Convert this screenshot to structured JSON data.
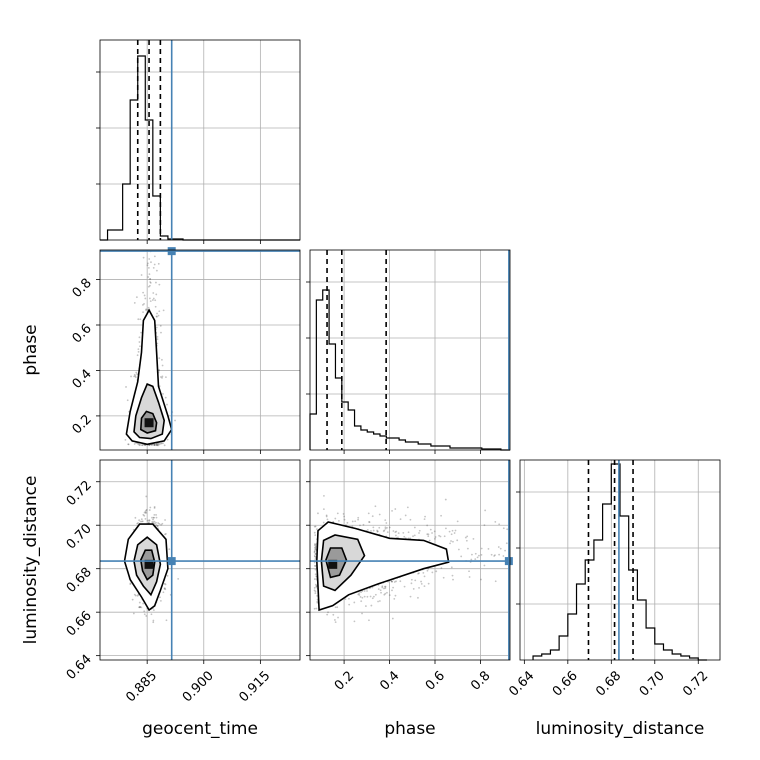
{
  "chart_data": {
    "type": "corner",
    "parameters": [
      "geocent_time",
      "phase",
      "luminosity_distance"
    ],
    "axis_ranges": {
      "geocent_time": [
        0.8725,
        0.9255
      ],
      "phase": [
        0.05,
        0.93
      ],
      "luminosity_distance": [
        0.638,
        0.73
      ]
    },
    "ticks": {
      "geocent_time": [
        0.885,
        0.9,
        0.915
      ],
      "phase": [
        0.2,
        0.4,
        0.6,
        0.8
      ],
      "luminosity_distance": [
        0.64,
        0.66,
        0.68,
        0.7,
        0.72
      ]
    },
    "tick_labels": {
      "geocent_time": [
        "0.885",
        "0.900",
        "0.915"
      ],
      "phase": [
        "0.2",
        "0.4",
        "0.6",
        "0.8"
      ],
      "luminosity_distance": [
        "0.64",
        "0.66",
        "0.68",
        "0.70",
        "0.72"
      ]
    },
    "truths": {
      "geocent_time": 0.8915,
      "phase": 0.925,
      "luminosity_distance": 0.6835
    },
    "quantiles": {
      "geocent_time": [
        0.8825,
        0.8855,
        0.8885
      ],
      "phase": [
        0.125,
        0.19,
        0.385
      ],
      "luminosity_distance": [
        0.6695,
        0.6815,
        0.69
      ]
    },
    "histograms": {
      "geocent_time": {
        "edges": [
          0.8725,
          0.8745,
          0.8765,
          0.8785,
          0.8805,
          0.8825,
          0.8845,
          0.8865,
          0.8885,
          0.8905,
          0.8925,
          0.8945,
          0.8965,
          0.8985,
          0.9005,
          0.9025,
          0.9045,
          0.9065,
          0.9085,
          0.9105,
          0.9125,
          0.9145,
          0.9165,
          0.9185,
          0.9205,
          0.9225,
          0.9245,
          0.9255
        ],
        "counts": [
          0.0,
          0.05,
          0.05,
          0.28,
          0.7,
          0.92,
          0.6,
          0.22,
          0.02,
          0.005,
          0.005,
          0.0,
          0.0,
          0.0,
          0.0,
          0.0,
          0.0,
          0.0,
          0.0,
          0.0,
          0.0,
          0.0,
          0.0,
          0.0,
          0.0,
          0.0,
          0.0
        ]
      },
      "phase": {
        "edges": [
          0.05,
          0.078,
          0.106,
          0.134,
          0.162,
          0.19,
          0.218,
          0.246,
          0.274,
          0.302,
          0.33,
          0.358,
          0.386,
          0.414,
          0.442,
          0.47,
          0.498,
          0.526,
          0.554,
          0.582,
          0.61,
          0.638,
          0.666,
          0.694,
          0.722,
          0.75,
          0.778,
          0.806,
          0.834,
          0.862,
          0.89,
          0.93
        ],
        "counts": [
          0.18,
          0.75,
          0.8,
          0.53,
          0.36,
          0.24,
          0.2,
          0.12,
          0.1,
          0.09,
          0.08,
          0.07,
          0.06,
          0.06,
          0.05,
          0.04,
          0.04,
          0.03,
          0.03,
          0.02,
          0.02,
          0.02,
          0.01,
          0.01,
          0.01,
          0.01,
          0.01,
          0.005,
          0.005,
          0.005,
          0.0
        ]
      },
      "luminosity_distance": {
        "edges": [
          0.644,
          0.648,
          0.652,
          0.656,
          0.66,
          0.664,
          0.668,
          0.672,
          0.676,
          0.68,
          0.684,
          0.688,
          0.692,
          0.696,
          0.7,
          0.704,
          0.708,
          0.712,
          0.716,
          0.72,
          0.724
        ],
        "counts": [
          0.02,
          0.03,
          0.05,
          0.12,
          0.23,
          0.38,
          0.5,
          0.6,
          0.78,
          0.98,
          0.72,
          0.45,
          0.3,
          0.16,
          0.08,
          0.05,
          0.03,
          0.02,
          0.01,
          0.0
        ]
      }
    },
    "pair_panels": [
      {
        "x": "geocent_time",
        "y": "phase",
        "scatter_center": [
          0.8855,
          0.25
        ],
        "scatter_spread": [
          0.0018,
          0.16
        ],
        "peak": [
          0.8855,
          0.17
        ],
        "contours": [
          [
            [
              0.8795,
              0.12
            ],
            [
              0.881,
              0.09
            ],
            [
              0.885,
              0.075
            ],
            [
              0.8895,
              0.09
            ],
            [
              0.8915,
              0.14
            ],
            [
              0.8905,
              0.2
            ],
            [
              0.888,
              0.33
            ],
            [
              0.8875,
              0.48
            ],
            [
              0.887,
              0.62
            ],
            [
              0.8855,
              0.665
            ],
            [
              0.884,
              0.62
            ],
            [
              0.8835,
              0.48
            ],
            [
              0.8825,
              0.35
            ],
            [
              0.8805,
              0.22
            ]
          ],
          [
            [
              0.8815,
              0.13
            ],
            [
              0.883,
              0.105
            ],
            [
              0.886,
              0.1
            ],
            [
              0.889,
              0.12
            ],
            [
              0.8895,
              0.18
            ],
            [
              0.888,
              0.26
            ],
            [
              0.8865,
              0.33
            ],
            [
              0.885,
              0.34
            ],
            [
              0.8835,
              0.28
            ],
            [
              0.882,
              0.2
            ]
          ],
          [
            [
              0.8833,
              0.14
            ],
            [
              0.885,
              0.125
            ],
            [
              0.8872,
              0.135
            ],
            [
              0.8875,
              0.17
            ],
            [
              0.8865,
              0.21
            ],
            [
              0.8848,
              0.22
            ],
            [
              0.8835,
              0.19
            ]
          ]
        ]
      },
      {
        "x": "geocent_time",
        "y": "luminosity_distance",
        "scatter_center": [
          0.8855,
          0.6835
        ],
        "scatter_spread": [
          0.0018,
          0.009
        ],
        "peak": [
          0.8855,
          0.682
        ],
        "contours": [
          [
            [
              0.879,
              0.6835
            ],
            [
              0.88,
              0.6935
            ],
            [
              0.883,
              0.7005
            ],
            [
              0.8865,
              0.7005
            ],
            [
              0.89,
              0.6935
            ],
            [
              0.8905,
              0.68
            ],
            [
              0.8885,
              0.67
            ],
            [
              0.887,
              0.663
            ],
            [
              0.8855,
              0.661
            ],
            [
              0.8835,
              0.667
            ],
            [
              0.8805,
              0.675
            ]
          ],
          [
            [
              0.8815,
              0.6835
            ],
            [
              0.8825,
              0.691
            ],
            [
              0.885,
              0.6945
            ],
            [
              0.8875,
              0.691
            ],
            [
              0.8885,
              0.682
            ],
            [
              0.8875,
              0.674
            ],
            [
              0.886,
              0.668
            ],
            [
              0.884,
              0.672
            ],
            [
              0.8822,
              0.677
            ]
          ],
          [
            [
              0.8833,
              0.684
            ],
            [
              0.8845,
              0.6885
            ],
            [
              0.8862,
              0.6885
            ],
            [
              0.887,
              0.683
            ],
            [
              0.8865,
              0.677
            ],
            [
              0.885,
              0.675
            ],
            [
              0.8838,
              0.679
            ]
          ]
        ]
      },
      {
        "x": "phase",
        "y": "luminosity_distance",
        "scatter_center": [
          0.3,
          0.6835
        ],
        "scatter_spread": [
          0.2,
          0.009
        ],
        "peak": [
          0.15,
          0.682
        ],
        "contours": [
          [
            [
              0.08,
              0.6835
            ],
            [
              0.085,
              0.6975
            ],
            [
              0.13,
              0.7015
            ],
            [
              0.25,
              0.6985
            ],
            [
              0.4,
              0.694
            ],
            [
              0.55,
              0.693
            ],
            [
              0.65,
              0.689
            ],
            [
              0.66,
              0.683
            ],
            [
              0.55,
              0.68
            ],
            [
              0.35,
              0.673
            ],
            [
              0.22,
              0.668
            ],
            [
              0.15,
              0.663
            ],
            [
              0.09,
              0.661
            ]
          ],
          [
            [
              0.1,
              0.6835
            ],
            [
              0.11,
              0.693
            ],
            [
              0.16,
              0.6955
            ],
            [
              0.26,
              0.6935
            ],
            [
              0.29,
              0.686
            ],
            [
              0.23,
              0.677
            ],
            [
              0.16,
              0.67
            ],
            [
              0.11,
              0.672
            ]
          ],
          [
            [
              0.12,
              0.684
            ],
            [
              0.14,
              0.6895
            ],
            [
              0.19,
              0.6895
            ],
            [
              0.21,
              0.684
            ],
            [
              0.18,
              0.677
            ],
            [
              0.14,
              0.676
            ]
          ]
        ]
      }
    ]
  }
}
